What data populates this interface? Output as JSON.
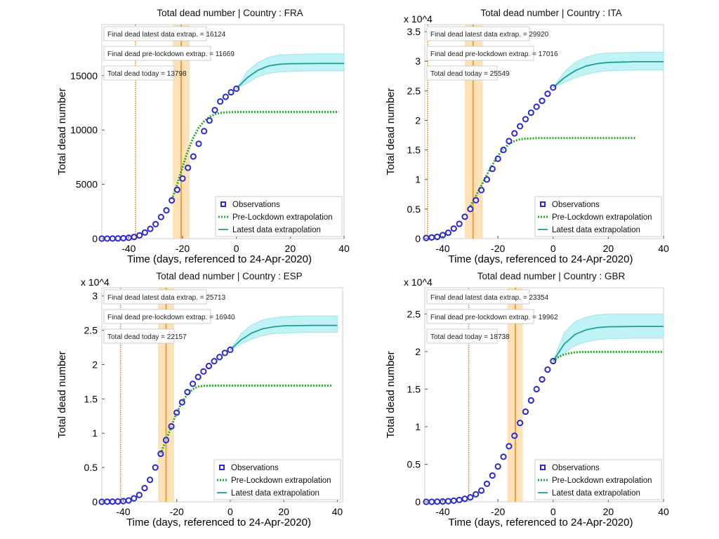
{
  "chart_data": [
    {
      "type": "line",
      "title": "Total dead number |  Country : FRA",
      "xlabel": "Time (days, referenced to 24-Apr-2020)",
      "ylabel": "Total dead number",
      "y_multiplier_label": "",
      "xlim": [
        -50,
        40
      ],
      "ylim": [
        0,
        19700
      ],
      "xticks": [
        -40,
        -20,
        0,
        20,
        40
      ],
      "yticks": [
        0,
        5000,
        10000,
        15000
      ],
      "lockdown_marks": {
        "line": -37.5,
        "band": [
          -23.6,
          -17.4
        ],
        "center": -20.5
      },
      "info_boxes": [
        "Final dead latest data extrap. = 16124",
        "Final dead pre-lockdown extrap. = 11669",
        "Total dead today = 13798"
      ],
      "legend": [
        "Observations",
        "Pre-Lockdown extrapolation",
        "Latest data extrapolation"
      ],
      "observations": {
        "x": [
          -50,
          -48,
          -46,
          -44,
          -42,
          -40,
          -38,
          -36,
          -34,
          -32,
          -30,
          -28,
          -26,
          -24,
          -22,
          -20,
          -18,
          -16,
          -14,
          -12,
          -10,
          -8,
          -6,
          -4,
          -2,
          0
        ],
        "y": [
          0,
          5,
          10,
          20,
          40,
          80,
          150,
          300,
          560,
          900,
          1330,
          1990,
          2600,
          3520,
          4500,
          5530,
          6520,
          7560,
          8730,
          9890,
          10870,
          11830,
          12620,
          13050,
          13470,
          13798
        ]
      },
      "pre_lockdown": {
        "x": [
          -24,
          -22,
          -20,
          -18,
          -16,
          -14,
          -12,
          -10,
          -8,
          -6,
          -4,
          0,
          10,
          38
        ],
        "y": [
          3600,
          5000,
          6600,
          8100,
          9300,
          10200,
          10800,
          11200,
          11450,
          11570,
          11620,
          11660,
          11669,
          11669
        ]
      },
      "latest": {
        "x": [
          0,
          4,
          8,
          12,
          16,
          20,
          30,
          40
        ],
        "y": [
          13798,
          14800,
          15500,
          15900,
          16050,
          16100,
          16124,
          16124
        ],
        "upper": [
          13798,
          15400,
          16200,
          16700,
          16900,
          16950,
          17000,
          17000
        ],
        "lower": [
          13798,
          14300,
          14900,
          15200,
          15350,
          15400,
          15450,
          15450
        ]
      }
    },
    {
      "type": "line",
      "title": "Total dead number |  Country : ITA",
      "xlabel": "Time (days, referenced to 24-Apr-2020)",
      "ylabel": "Total dead number",
      "y_multiplier_label": "x 10^4",
      "xlim": [
        -46.5,
        40
      ],
      "ylim": [
        0,
        3.62
      ],
      "xticks": [
        -40,
        -20,
        0,
        20,
        40
      ],
      "yticks": [
        0,
        0.5,
        1,
        1.5,
        2,
        2.5,
        3,
        3.5
      ],
      "lockdown_marks": {
        "line": -45.5,
        "band": [
          -32,
          -25.5
        ],
        "center": -29
      },
      "info_boxes": [
        "Final dead latest data extrap. = 29920",
        "Final dead pre-lockdown extrap. = 17016",
        "Total dead today = 25549"
      ],
      "legend": [
        "Observations",
        "Pre-Lockdown extrapolation",
        "Latest data extrapolation"
      ],
      "observations": {
        "x": [
          -46,
          -44,
          -42,
          -40,
          -38,
          -36,
          -34,
          -32,
          -30,
          -28,
          -26,
          -24,
          -22,
          -20,
          -18,
          -16,
          -14,
          -12,
          -10,
          -8,
          -6,
          -4,
          -2,
          0
        ],
        "y": [
          0.01,
          0.02,
          0.03,
          0.06,
          0.1,
          0.17,
          0.25,
          0.37,
          0.5,
          0.65,
          0.82,
          1.0,
          1.18,
          1.35,
          1.5,
          1.65,
          1.78,
          1.9,
          2.02,
          2.13,
          2.23,
          2.33,
          2.45,
          2.555
        ]
      },
      "pre_lockdown": {
        "x": [
          -30,
          -28,
          -26,
          -24,
          -22,
          -20,
          -18,
          -16,
          -14,
          -12,
          -10,
          -6,
          0,
          10,
          30
        ],
        "y": [
          0.55,
          0.72,
          0.9,
          1.08,
          1.25,
          1.4,
          1.52,
          1.6,
          1.65,
          1.68,
          1.69,
          1.7,
          1.7,
          1.7016,
          1.7016
        ]
      },
      "latest": {
        "x": [
          0,
          4,
          8,
          12,
          16,
          20,
          30,
          40
        ],
        "y": [
          2.555,
          2.72,
          2.84,
          2.92,
          2.96,
          2.98,
          2.992,
          2.992
        ],
        "upper": [
          2.555,
          2.82,
          2.98,
          3.07,
          3.12,
          3.14,
          3.15,
          3.15
        ],
        "lower": [
          2.555,
          2.64,
          2.72,
          2.78,
          2.82,
          2.84,
          2.85,
          2.85
        ]
      }
    },
    {
      "type": "line",
      "title": "Total dead number |  Country : ESP",
      "xlabel": "Time (days, referenced to 24-Apr-2020)",
      "ylabel": "Total dead number",
      "y_multiplier_label": "x 10^4",
      "xlim": [
        -48,
        42
      ],
      "ylim": [
        0,
        3.12
      ],
      "xticks": [
        -40,
        -20,
        0,
        20,
        40
      ],
      "yticks": [
        0,
        0.5,
        1,
        1.5,
        2,
        2.5,
        3
      ],
      "lockdown_marks": {
        "line": -41,
        "band": [
          -27,
          -21
        ],
        "center": -24
      },
      "info_boxes": [
        "Final dead latest data extrap. = 25713",
        "Final dead pre-lockdown extrap. = 16940",
        "Total dead today = 22157"
      ],
      "legend": [
        "Observations",
        "Pre-Lockdown extrapolation",
        "Latest data extrapolation"
      ],
      "observations": {
        "x": [
          -48,
          -46,
          -44,
          -42,
          -40,
          -38,
          -36,
          -34,
          -32,
          -30,
          -28,
          -26,
          -24,
          -22,
          -20,
          -18,
          -16,
          -14,
          -12,
          -10,
          -8,
          -6,
          -4,
          -2,
          0
        ],
        "y": [
          0,
          0.002,
          0.003,
          0.005,
          0.01,
          0.02,
          0.05,
          0.1,
          0.2,
          0.32,
          0.5,
          0.7,
          0.9,
          1.1,
          1.3,
          1.45,
          1.6,
          1.72,
          1.82,
          1.9,
          1.98,
          2.05,
          2.11,
          2.17,
          2.216
        ]
      },
      "pre_lockdown": {
        "x": [
          -26,
          -24,
          -22,
          -20,
          -18,
          -16,
          -14,
          -12,
          -10,
          -6,
          0,
          10,
          38
        ],
        "y": [
          0.7,
          0.9,
          1.1,
          1.3,
          1.45,
          1.57,
          1.64,
          1.68,
          1.69,
          1.694,
          1.694,
          1.694,
          1.694
        ]
      },
      "latest": {
        "x": [
          0,
          4,
          8,
          12,
          16,
          20,
          30,
          40
        ],
        "y": [
          2.216,
          2.36,
          2.46,
          2.52,
          2.55,
          2.565,
          2.571,
          2.571
        ],
        "upper": [
          2.216,
          2.45,
          2.58,
          2.65,
          2.68,
          2.7,
          2.71,
          2.71
        ],
        "lower": [
          2.216,
          2.3,
          2.37,
          2.42,
          2.45,
          2.46,
          2.47,
          2.47
        ]
      }
    },
    {
      "type": "line",
      "title": "Total dead number |  Country : GBR",
      "xlabel": "Time (days, referenced to 24-Apr-2020)",
      "ylabel": "Total dead number",
      "y_multiplier_label": "x 10^4",
      "xlim": [
        -46.5,
        40
      ],
      "ylim": [
        0,
        2.85
      ],
      "xticks": [
        -40,
        -20,
        0,
        20,
        40
      ],
      "yticks": [
        0,
        0.5,
        1,
        1.5,
        2,
        2.5
      ],
      "lockdown_marks": {
        "line": -30.6,
        "band": [
          -16.6,
          -11
        ],
        "center": -13.7
      },
      "info_boxes": [
        "Final dead latest data extrap. = 23354",
        "Final dead pre-lockdown extrap. = 19962",
        "Total dead today = 18738"
      ],
      "legend": [
        "Observations",
        "Pre-Lockdown extrapolation",
        "Latest data extrapolation"
      ],
      "observations": {
        "x": [
          -46,
          -44,
          -42,
          -40,
          -38,
          -36,
          -34,
          -32,
          -30,
          -28,
          -26,
          -24,
          -22,
          -20,
          -18,
          -16,
          -14,
          -12,
          -10,
          -8,
          -6,
          -4,
          -2,
          0
        ],
        "y": [
          0,
          0,
          0.002,
          0.005,
          0.008,
          0.015,
          0.025,
          0.04,
          0.06,
          0.1,
          0.15,
          0.24,
          0.35,
          0.47,
          0.6,
          0.74,
          0.88,
          1.05,
          1.2,
          1.35,
          1.5,
          1.63,
          1.76,
          1.874
        ]
      },
      "pre_lockdown": {
        "x": [
          0,
          2,
          4,
          6,
          8,
          10,
          14,
          20,
          30,
          40
        ],
        "y": [
          1.874,
          1.93,
          1.96,
          1.98,
          1.99,
          1.994,
          1.996,
          1.996,
          1.996,
          1.996
        ]
      },
      "latest": {
        "x": [
          0,
          4,
          8,
          12,
          16,
          20,
          30,
          40
        ],
        "y": [
          1.874,
          2.1,
          2.23,
          2.29,
          2.32,
          2.33,
          2.335,
          2.335
        ],
        "upper": [
          1.874,
          2.25,
          2.4,
          2.46,
          2.49,
          2.5,
          2.5,
          2.5
        ],
        "lower": [
          1.874,
          1.98,
          2.08,
          2.13,
          2.16,
          2.17,
          2.18,
          2.18
        ]
      }
    }
  ],
  "colors": {
    "observations": "#2a2ad0",
    "pre_lockdown": "#22aa22",
    "latest": "#1e9e9a",
    "band": "#bff3f5",
    "lockdown": "#e8a040",
    "lockdown_band": "#fbd9a8"
  }
}
